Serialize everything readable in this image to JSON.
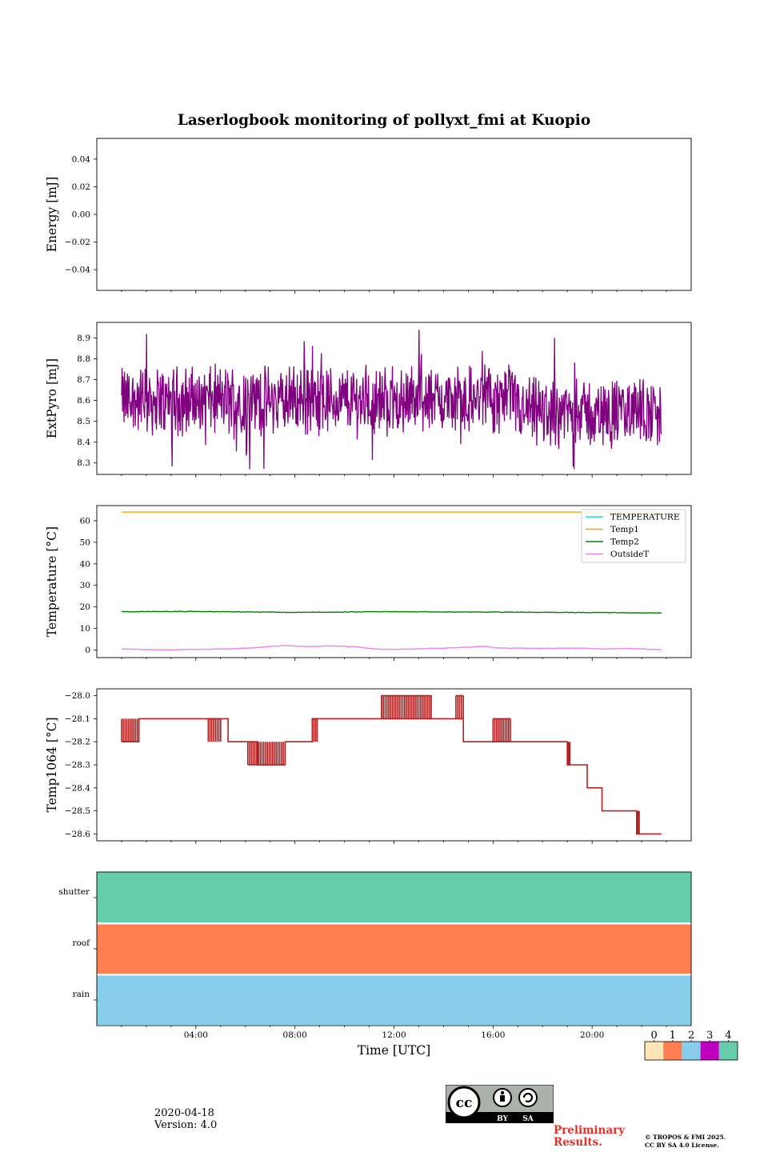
{
  "title": "Laserlogbook monitoring of pollyxt_fmi at Kuopio",
  "footer": {
    "date": "2020-04-18",
    "version": "Version: 4.0",
    "preliminary_line1": "Preliminary",
    "preliminary_line2": "Results.",
    "copyright_line1": "© TROPOS & FMI 2025.",
    "copyright_line2": "CC BY SA 4.0 License.",
    "license_badge": {
      "cc": "cc",
      "by": "BY",
      "sa": "SA"
    }
  },
  "chart_data": [
    {
      "type": "line",
      "name": "energy",
      "ylabel": "Energy [mJ]",
      "ylim": [
        -0.055,
        0.055
      ],
      "yticks": [
        -0.04,
        -0.02,
        0.0,
        0.02,
        0.04
      ],
      "ytick_labels": [
        "−0.04",
        "−0.02",
        "0.00",
        "0.02",
        "0.04"
      ],
      "series": []
    },
    {
      "type": "line",
      "name": "extpyro",
      "ylabel": "ExtPyro [mJ]",
      "ylim": [
        8.245,
        8.975
      ],
      "yticks": [
        8.3,
        8.4,
        8.5,
        8.6,
        8.7,
        8.8,
        8.9
      ],
      "ytick_labels": [
        "8.3",
        "8.4",
        "8.5",
        "8.6",
        "8.7",
        "8.8",
        "8.9"
      ],
      "x_range_hours": [
        1.0,
        22.8
      ],
      "mean": 8.6,
      "min": 8.27,
      "max": 8.94,
      "series": [
        {
          "name": "ExtPyro",
          "color": "#800080",
          "note": "noisy signal around ~8.6 mJ, ~8.55 after 18:00"
        }
      ]
    },
    {
      "type": "line",
      "name": "temperature",
      "ylabel": "Temperature [°C]",
      "ylim": [
        -3.5,
        67
      ],
      "yticks": [
        0,
        10,
        20,
        30,
        40,
        50,
        60
      ],
      "ytick_labels": [
        "0",
        "10",
        "20",
        "30",
        "40",
        "50",
        "60"
      ],
      "legend": [
        "TEMPERATURE",
        "Temp1",
        "Temp2",
        "OutsideT"
      ],
      "legend_location": "top-right",
      "series": [
        {
          "name": "TEMPERATURE",
          "color": "#00e5e5",
          "x": [],
          "values": []
        },
        {
          "name": "Temp1",
          "color": "#ffa500",
          "x": [
            1.0,
            22.8
          ],
          "values": [
            64,
            64
          ]
        },
        {
          "name": "Temp2",
          "color": "#008000",
          "x": [
            1.0,
            4.0,
            8.0,
            12.0,
            16.0,
            20.0,
            22.8
          ],
          "values": [
            17.8,
            17.9,
            17.5,
            17.8,
            17.6,
            17.4,
            17.2
          ]
        },
        {
          "name": "OutsideT",
          "color": "#ee82ee",
          "x": [
            1.0,
            2.5,
            4.0,
            5.5,
            6.5,
            7.6,
            8.5,
            9.5,
            10.5,
            11.3,
            12.0,
            13.0,
            14.0,
            15.0,
            15.6,
            16.3,
            18.0,
            19.5,
            20.5,
            21.5,
            22.8
          ],
          "values": [
            0.5,
            0.1,
            0.3,
            0.6,
            1.2,
            2.1,
            1.6,
            1.9,
            1.5,
            0.4,
            0.3,
            0.6,
            0.9,
            1.3,
            1.8,
            0.9,
            0.8,
            0.9,
            0.5,
            0.8,
            0.1
          ]
        }
      ]
    },
    {
      "type": "line",
      "name": "temp1064",
      "ylabel": "Temp1064 [°C]",
      "ylim": [
        -28.63,
        -27.97
      ],
      "yticks": [
        -28.6,
        -28.5,
        -28.4,
        -28.3,
        -28.2,
        -28.1,
        -28.0
      ],
      "ytick_labels": [
        "−28.6",
        "−28.5",
        "−28.4",
        "−28.3",
        "−28.2",
        "−28.1",
        "−28.0"
      ],
      "series": [
        {
          "name": "Temp1064",
          "color": "#b22222",
          "x": [
            1.0,
            1.7,
            4.5,
            5.3,
            6.5,
            7.6,
            8.7,
            11.5,
            13.5,
            14.8,
            16.0,
            18.0,
            19.0,
            19.8,
            20.4,
            21.8,
            22.8
          ],
          "values": [
            -28.2,
            -28.1,
            -28.1,
            -28.2,
            -28.3,
            -28.2,
            -28.1,
            -28.0,
            -28.1,
            -28.2,
            -28.2,
            -28.2,
            -28.3,
            -28.4,
            -28.5,
            -28.6,
            -28.6
          ],
          "flicker_segments": [
            [
              1.0,
              1.7,
              -28.1,
              -28.2
            ],
            [
              4.5,
              5.0,
              -28.2,
              -28.1
            ],
            [
              6.1,
              7.6,
              -28.2,
              -28.3
            ],
            [
              8.7,
              8.9,
              -28.2,
              -28.1
            ],
            [
              11.5,
              13.5,
              -28.0,
              -28.1
            ],
            [
              14.5,
              14.8,
              -28.1,
              -28.0
            ],
            [
              16.0,
              16.7,
              -28.2,
              -28.1
            ],
            [
              19.0,
              19.1,
              -28.2,
              -28.3
            ],
            [
              21.8,
              21.9,
              -28.5,
              -28.6
            ]
          ]
        }
      ]
    },
    {
      "type": "heatmap",
      "name": "flags",
      "xlabel": "Time [UTC]",
      "rows": [
        "shutter",
        "roof",
        "rain"
      ],
      "row_values": [
        4,
        1,
        2
      ],
      "x_range_hours": [
        0,
        24
      ],
      "xticks": [
        4,
        8,
        12,
        16,
        20
      ],
      "xtick_labels": [
        "04:00",
        "08:00",
        "12:00",
        "16:00",
        "20:00"
      ],
      "colorbar": {
        "values": [
          0,
          1,
          2,
          3,
          4
        ],
        "labels": [
          "0",
          "1",
          "2",
          "3",
          "4"
        ],
        "colors": [
          "#ffe4b5",
          "#ff7f50",
          "#87ceeb",
          "#c000c0",
          "#66cdaa"
        ]
      }
    }
  ]
}
